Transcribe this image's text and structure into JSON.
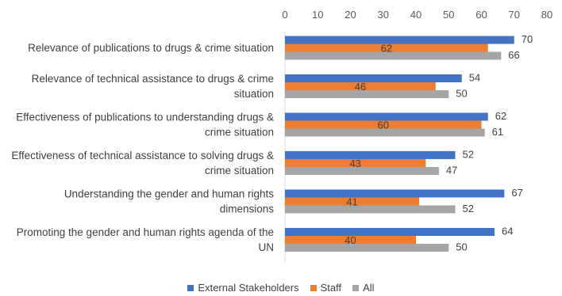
{
  "chart_data": {
    "type": "bar",
    "orientation": "horizontal",
    "categories": [
      [
        "Relevance of publications to drugs & crime situation"
      ],
      [
        "Relevance of technical assistance to drugs & crime",
        "situation"
      ],
      [
        "Effectiveness of publications to understanding drugs &",
        "crime situation"
      ],
      [
        "Effectiveness of technical assistance to solving drugs &",
        "crime situation"
      ],
      [
        "Understanding the gender and human rights",
        "dimensions"
      ],
      [
        "Promoting the gender and human rights agenda of the",
        "UN"
      ]
    ],
    "series": [
      {
        "name": "External Stakeholders",
        "color": "#4472C4",
        "values": [
          70,
          54,
          62,
          52,
          67,
          64
        ]
      },
      {
        "name": "Staff",
        "color": "#ED7D31",
        "values": [
          62,
          46,
          60,
          43,
          41,
          40
        ]
      },
      {
        "name": "All",
        "color": "#A5A5A5",
        "values": [
          66,
          50,
          61,
          47,
          52,
          50
        ]
      }
    ],
    "xlim": [
      0,
      80
    ],
    "xticks": [
      0,
      10,
      20,
      30,
      40,
      50,
      60,
      70,
      80
    ],
    "axis_position": "top",
    "grid": false,
    "legend_position": "bottom"
  }
}
